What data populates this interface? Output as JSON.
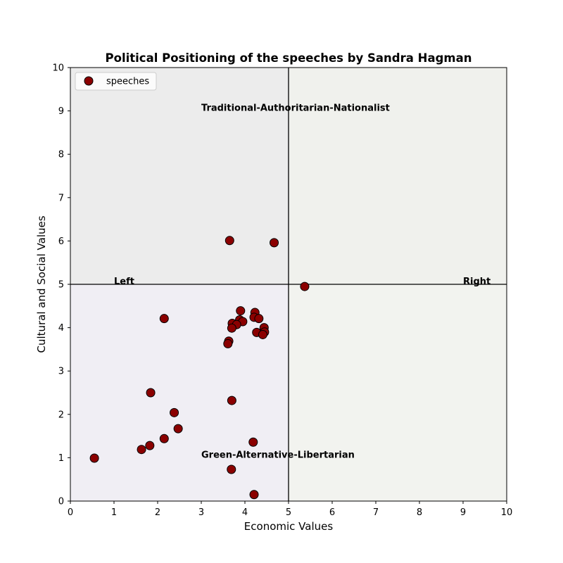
{
  "chart_data": {
    "type": "scatter",
    "title": "Political Positioning of the speeches by Sandra Hagman",
    "xlabel": "Economic Values",
    "ylabel": "Cultural and Social Values",
    "xlim": [
      0,
      10
    ],
    "ylim": [
      0,
      10
    ],
    "xticks": [
      "0",
      "1",
      "2",
      "3",
      "4",
      "5",
      "6",
      "7",
      "8",
      "9",
      "10"
    ],
    "yticks": [
      "0",
      "1",
      "2",
      "3",
      "4",
      "5",
      "6",
      "7",
      "8",
      "9",
      "10"
    ],
    "grid": false,
    "legend_position": "upper-left",
    "quadrant_divider": {
      "x": 5,
      "y": 5
    },
    "quadrant_colors": {
      "top_left": "#ececec",
      "top_right": "#f0f1ed",
      "bottom_left": "#f0eef4",
      "bottom_right": "#f2f3ef"
    },
    "annotations": [
      {
        "text": "Traditional-Authoritarian-Nationalist",
        "x": 3,
        "y": 9
      },
      {
        "text": "Green-Alternative-Libertarian",
        "x": 3,
        "y": 1
      },
      {
        "text": "Left",
        "x": 1,
        "y": 5
      },
      {
        "text": "Right",
        "x": 9,
        "y": 5
      }
    ],
    "series": [
      {
        "name": "speeches",
        "color": "#8b0000",
        "edge_color": "#000000",
        "points": [
          {
            "x": 3.65,
            "y": 6.01
          },
          {
            "x": 4.67,
            "y": 5.96
          },
          {
            "x": 5.37,
            "y": 4.95
          },
          {
            "x": 2.15,
            "y": 4.21
          },
          {
            "x": 3.9,
            "y": 4.39
          },
          {
            "x": 4.23,
            "y": 4.35
          },
          {
            "x": 4.21,
            "y": 4.24
          },
          {
            "x": 4.32,
            "y": 4.21
          },
          {
            "x": 3.88,
            "y": 4.18
          },
          {
            "x": 3.95,
            "y": 4.14
          },
          {
            "x": 3.71,
            "y": 4.1
          },
          {
            "x": 3.81,
            "y": 4.07
          },
          {
            "x": 3.7,
            "y": 3.99
          },
          {
            "x": 4.44,
            "y": 4.0
          },
          {
            "x": 4.45,
            "y": 3.9
          },
          {
            "x": 4.27,
            "y": 3.89
          },
          {
            "x": 4.41,
            "y": 3.84
          },
          {
            "x": 3.63,
            "y": 3.69
          },
          {
            "x": 3.61,
            "y": 3.63
          },
          {
            "x": 1.84,
            "y": 2.5
          },
          {
            "x": 3.7,
            "y": 2.32
          },
          {
            "x": 2.38,
            "y": 2.04
          },
          {
            "x": 2.47,
            "y": 1.67
          },
          {
            "x": 2.15,
            "y": 1.44
          },
          {
            "x": 4.19,
            "y": 1.36
          },
          {
            "x": 1.82,
            "y": 1.28
          },
          {
            "x": 1.63,
            "y": 1.19
          },
          {
            "x": 0.55,
            "y": 0.99
          },
          {
            "x": 3.69,
            "y": 0.73
          },
          {
            "x": 4.21,
            "y": 0.15
          }
        ]
      }
    ]
  }
}
